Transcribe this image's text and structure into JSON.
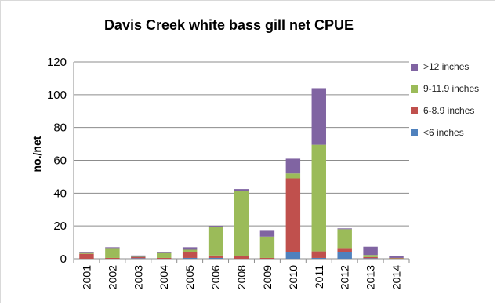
{
  "chart_data": {
    "type": "bar",
    "stacked": true,
    "title": "Davis Creek white bass gill net CPUE",
    "xlabel": "",
    "ylabel": "no./net",
    "ylim": [
      0,
      120
    ],
    "yticks": [
      0,
      20,
      40,
      60,
      80,
      100,
      120
    ],
    "grid": "horizontal",
    "legend_position": "right",
    "categories": [
      "2001",
      "2002",
      "2003",
      "2004",
      "2005",
      "2006",
      "2008",
      "2009",
      "2010",
      "2011",
      "2012",
      "2013",
      "2014"
    ],
    "series": [
      {
        "name": "<6 inches",
        "color": "#4f81bd",
        "values": [
          0,
          0,
          0.3,
          0,
          0.5,
          0.5,
          0,
          0,
          4,
          0.5,
          4,
          0.3,
          0
        ]
      },
      {
        "name": "6-8.9 inches",
        "color": "#c0504d",
        "values": [
          3,
          0.5,
          0.7,
          0.5,
          3.5,
          1.5,
          1.5,
          0.5,
          45,
          4,
          2.5,
          0.7,
          0.3
        ]
      },
      {
        "name": "9-11.9 inches",
        "color": "#9bbb59",
        "values": [
          0.5,
          6,
          0.2,
          3,
          1.5,
          17.5,
          40,
          13,
          3,
          65,
          11.5,
          1.3,
          0.2
        ]
      },
      {
        "name": ">12 inches",
        "color": "#8064a2",
        "values": [
          0.5,
          0.5,
          0.8,
          0.5,
          1.5,
          0.5,
          1,
          4,
          9,
          34.5,
          0.5,
          5,
          1
        ]
      }
    ],
    "legend_order": [
      ">12 inches",
      "9-11.9 inches",
      "6-8.9 inches",
      "<6 inches"
    ]
  }
}
